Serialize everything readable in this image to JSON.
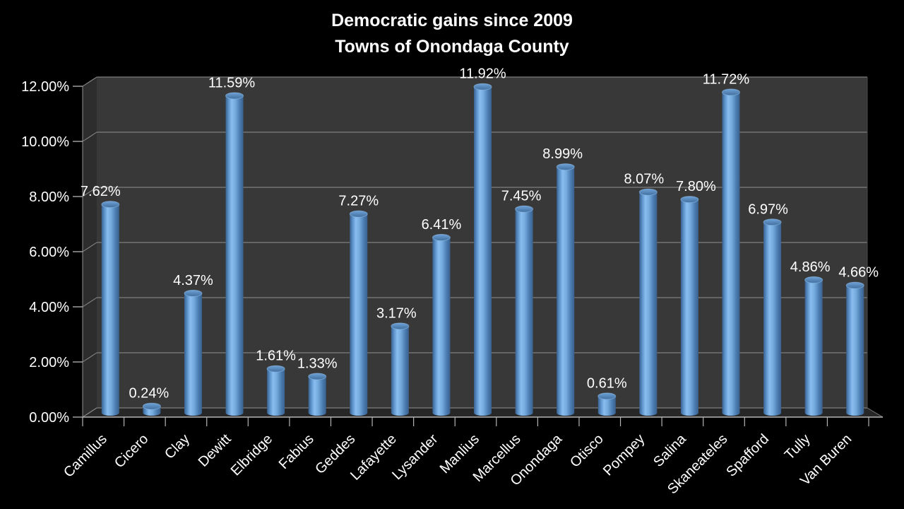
{
  "chart_data": {
    "type": "bar",
    "effect": "3d-cylinder",
    "title": "Democratic gains since 2009",
    "subtitle": "Towns of Onondaga County",
    "categories": [
      "Camillus",
      "Cicero",
      "Clay",
      "Dewitt",
      "Elbridge",
      "Fabius",
      "Geddes",
      "Lafayette",
      "Lysander",
      "Manlius",
      "Marcellus",
      "Onondaga",
      "Otisco",
      "Pompey",
      "Salina",
      "Skaneateles",
      "Spafford",
      "Tully",
      "Van Buren"
    ],
    "values": [
      7.62,
      0.24,
      4.37,
      11.59,
      1.61,
      1.33,
      7.27,
      3.17,
      6.41,
      11.92,
      7.45,
      8.99,
      0.61,
      8.07,
      7.8,
      11.72,
      6.97,
      4.86,
      4.66
    ],
    "value_labels": [
      "7.62%",
      "0.24%",
      "4.37%",
      "11.59%",
      "1.61%",
      "1.33%",
      "7.27%",
      "3.17%",
      "6.41%",
      "11.92%",
      "7.45%",
      "8.99%",
      "0.61%",
      "8.07%",
      "7.80%",
      "11.72%",
      "6.97%",
      "4.86%",
      "4.66%"
    ],
    "label_dx": [
      -14,
      -4,
      0,
      -4,
      0,
      0,
      0,
      -5,
      0,
      0,
      -4,
      -4,
      0,
      -6,
      9,
      -7,
      -6,
      -5,
      5
    ],
    "y_ticks": [
      "0.00%",
      "2.00%",
      "4.00%",
      "6.00%",
      "8.00%",
      "10.00%",
      "12.00%"
    ],
    "xlabel": "",
    "ylabel": "",
    "ylim": [
      0,
      12
    ],
    "y_step": 2,
    "grid": true,
    "legend": false,
    "style": {
      "background": "#000000",
      "back_wall": "#383838",
      "side_wall": "#2d2d2d",
      "floor": "#272727",
      "gridline": "#7e7e7e",
      "axis_line": "#b5b5b5",
      "tick_diagonal": "#8a8a8a",
      "edge_line": "#6a6a6a",
      "text": "#ffffff",
      "bar_edge_dark": "#3a618f",
      "bar_mid": "#5b92c9",
      "bar_highlight": "#8abdf0",
      "bar_soft": "#74aadd",
      "bar_right": "#4b7cb1",
      "bar_top_light": "#6ea1d6",
      "bar_top_dark": "#42709f",
      "bar_top_rim": "#8fbbe6"
    }
  }
}
